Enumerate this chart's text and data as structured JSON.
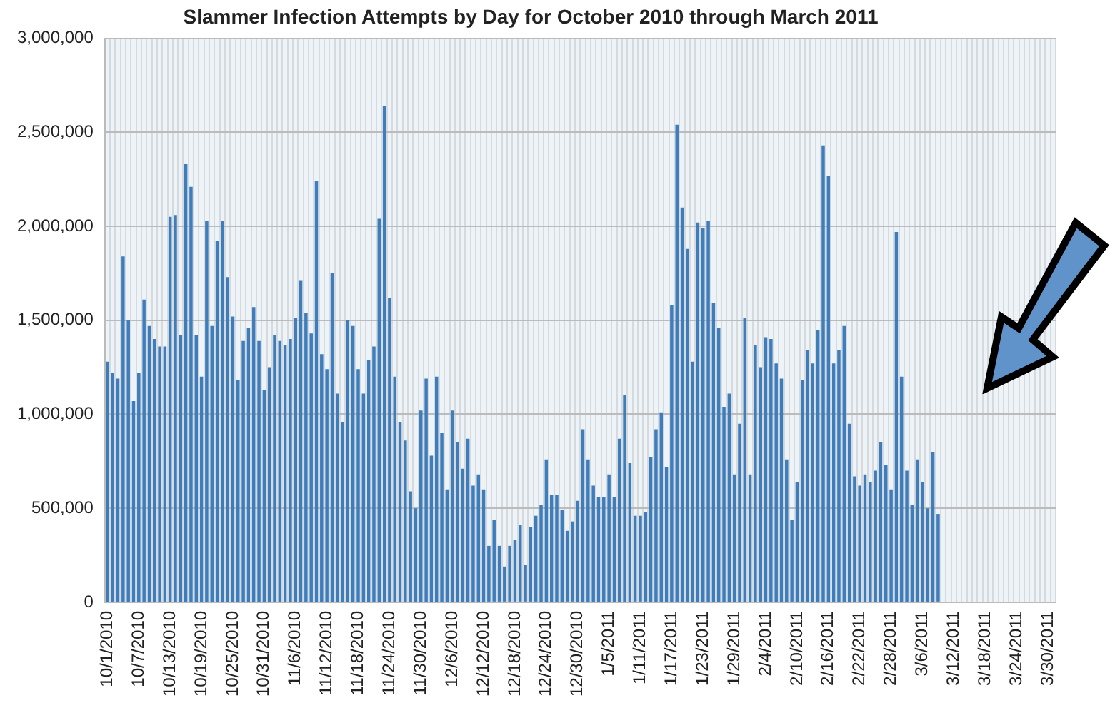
{
  "chart_data": {
    "type": "bar",
    "title": "Slammer Infection Attempts by Day for October 2010 through March 2011",
    "categories": [
      "10/1/2010",
      null,
      null,
      null,
      null,
      null,
      "10/7/2010",
      null,
      null,
      null,
      null,
      null,
      "10/13/2010",
      null,
      null,
      null,
      null,
      null,
      "10/19/2010",
      null,
      null,
      null,
      null,
      null,
      "10/25/2010",
      null,
      null,
      null,
      null,
      null,
      "10/31/2010",
      null,
      null,
      null,
      null,
      null,
      "11/6/2010",
      null,
      null,
      null,
      null,
      null,
      "11/12/2010",
      null,
      null,
      null,
      null,
      null,
      "11/18/2010",
      null,
      null,
      null,
      null,
      null,
      "11/24/2010",
      null,
      null,
      null,
      null,
      null,
      "11/30/2010",
      null,
      null,
      null,
      null,
      null,
      "12/6/2010",
      null,
      null,
      null,
      null,
      null,
      "12/12/2010",
      null,
      null,
      null,
      null,
      null,
      "12/18/2010",
      null,
      null,
      null,
      null,
      null,
      "12/24/2010",
      null,
      null,
      null,
      null,
      null,
      "12/30/2010",
      null,
      null,
      null,
      null,
      null,
      "1/5/2011",
      null,
      null,
      null,
      null,
      null,
      "1/11/2011",
      null,
      null,
      null,
      null,
      null,
      "1/17/2011",
      null,
      null,
      null,
      null,
      null,
      "1/23/2011",
      null,
      null,
      null,
      null,
      null,
      "1/29/2011",
      null,
      null,
      null,
      null,
      null,
      "2/4/2011",
      null,
      null,
      null,
      null,
      null,
      "2/10/2011",
      null,
      null,
      null,
      null,
      null,
      "2/16/2011",
      null,
      null,
      null,
      null,
      null,
      "2/22/2011",
      null,
      null,
      null,
      null,
      null,
      "2/28/2011",
      null,
      null,
      null,
      null,
      null,
      "3/6/2011",
      null,
      null,
      null,
      null,
      null,
      "3/12/2011",
      null,
      null,
      null,
      null,
      null,
      "3/18/2011",
      null,
      null,
      null,
      null,
      null,
      "3/24/2011",
      null,
      null,
      null,
      null,
      null,
      "3/30/2011",
      null
    ],
    "values": [
      1280000,
      1220000,
      1190000,
      1840000,
      1500000,
      1070000,
      1220000,
      1610000,
      1470000,
      1400000,
      1360000,
      1360000,
      2050000,
      2060000,
      1420000,
      2330000,
      2210000,
      1420000,
      1200000,
      2030000,
      1470000,
      1920000,
      2030000,
      1730000,
      1520000,
      1180000,
      1390000,
      1460000,
      1570000,
      1390000,
      1130000,
      1250000,
      1420000,
      1390000,
      1370000,
      1400000,
      1510000,
      1710000,
      1540000,
      1430000,
      2240000,
      1320000,
      1240000,
      1750000,
      1110000,
      960000,
      1500000,
      1470000,
      1240000,
      1110000,
      1290000,
      1360000,
      2040000,
      2640000,
      1620000,
      1200000,
      960000,
      860000,
      590000,
      500000,
      1020000,
      1190000,
      780000,
      1200000,
      900000,
      600000,
      1020000,
      850000,
      710000,
      870000,
      620000,
      680000,
      600000,
      300000,
      440000,
      300000,
      190000,
      300000,
      330000,
      410000,
      200000,
      400000,
      460000,
      520000,
      760000,
      570000,
      570000,
      490000,
      380000,
      430000,
      540000,
      920000,
      760000,
      620000,
      560000,
      560000,
      680000,
      560000,
      870000,
      1100000,
      740000,
      460000,
      460000,
      480000,
      770000,
      920000,
      1010000,
      720000,
      1580000,
      2540000,
      2100000,
      1880000,
      1280000,
      2020000,
      1990000,
      2030000,
      1590000,
      1460000,
      1040000,
      1110000,
      680000,
      950000,
      1510000,
      680000,
      1370000,
      1250000,
      1410000,
      1400000,
      1270000,
      1190000,
      760000,
      440000,
      640000,
      1180000,
      1340000,
      1270000,
      1450000,
      2430000,
      2270000,
      1270000,
      1340000,
      1470000,
      950000,
      670000,
      620000,
      680000,
      640000,
      700000,
      850000,
      730000,
      600000,
      1970000,
      1200000,
      700000,
      520000,
      760000,
      640000,
      500000,
      800000,
      470000,
      null,
      null,
      null,
      null,
      null,
      null,
      null,
      null,
      null,
      null,
      null,
      null,
      null,
      null,
      null,
      null,
      null,
      null,
      null,
      null,
      null,
      null
    ],
    "color": "#3f7cba",
    "ylim": [
      0,
      3000000
    ],
    "yticks": [
      {
        "value": 0,
        "label": "0"
      },
      {
        "value": 500000,
        "label": "500,000"
      },
      {
        "value": 1000000,
        "label": "1,000,000"
      },
      {
        "value": 1500000,
        "label": "1,500,000"
      },
      {
        "value": 2000000,
        "label": "2,000,000"
      },
      {
        "value": 2500000,
        "label": "2,500,000"
      },
      {
        "value": 3000000,
        "label": "3,000,000"
      }
    ],
    "grid": true
  }
}
